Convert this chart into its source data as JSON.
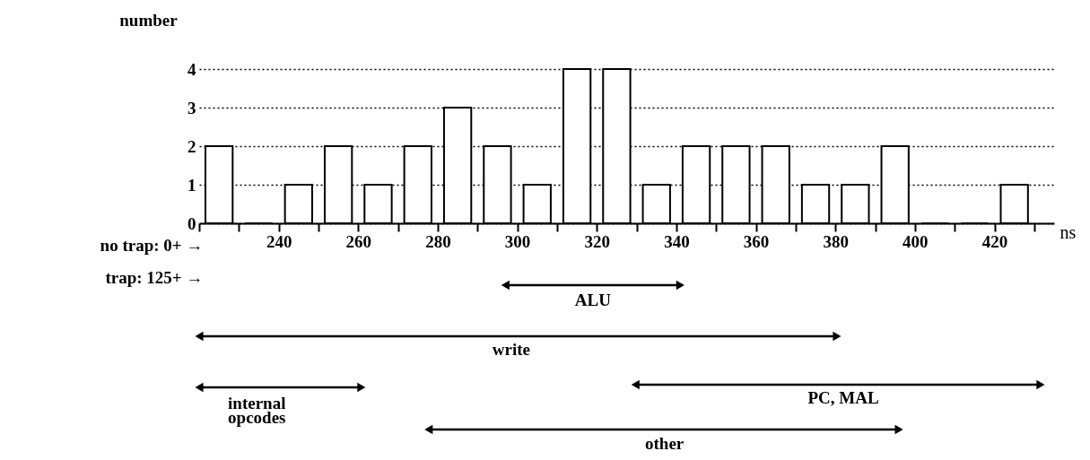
{
  "chart_data": {
    "type": "histogram",
    "ylabel": "number",
    "xlabel": "ns",
    "bins": [
      220,
      230,
      240,
      250,
      260,
      270,
      280,
      290,
      300,
      310,
      320,
      330,
      340,
      350,
      360,
      370,
      380,
      390,
      400,
      410,
      420,
      430
    ],
    "values": [
      2,
      0,
      1,
      2,
      1,
      2,
      3,
      2,
      1,
      4,
      4,
      1,
      2,
      2,
      2,
      1,
      1,
      2,
      0,
      0,
      1
    ],
    "color": "#ffffff",
    "xlim": [
      220,
      435
    ],
    "xticks": [
      {
        "value": 220,
        "label": null
      },
      {
        "value": 230,
        "label": null
      },
      240,
      {
        "value": 250,
        "label": null
      },
      260,
      {
        "value": 270,
        "label": null
      },
      280,
      {
        "value": 290,
        "label": null
      },
      300,
      {
        "value": 310,
        "label": null
      },
      320,
      {
        "value": 330,
        "label": null
      },
      340,
      {
        "value": 350,
        "label": null
      },
      360,
      {
        "value": 370,
        "label": null
      },
      380,
      {
        "value": 390,
        "label": null
      },
      400,
      {
        "value": 410,
        "label": null
      },
      420,
      {
        "value": 430,
        "label": null
      }
    ],
    "ylim": [
      0,
      4
    ],
    "yticks": [
      0,
      1,
      2,
      3,
      4
    ],
    "grid": "y",
    "annotations": [
      "no trap: 0+ →",
      "trap: 125+ →",
      "ALU",
      "write",
      "internal\nopcodes",
      "PC, MAL",
      "other"
    ]
  }
}
